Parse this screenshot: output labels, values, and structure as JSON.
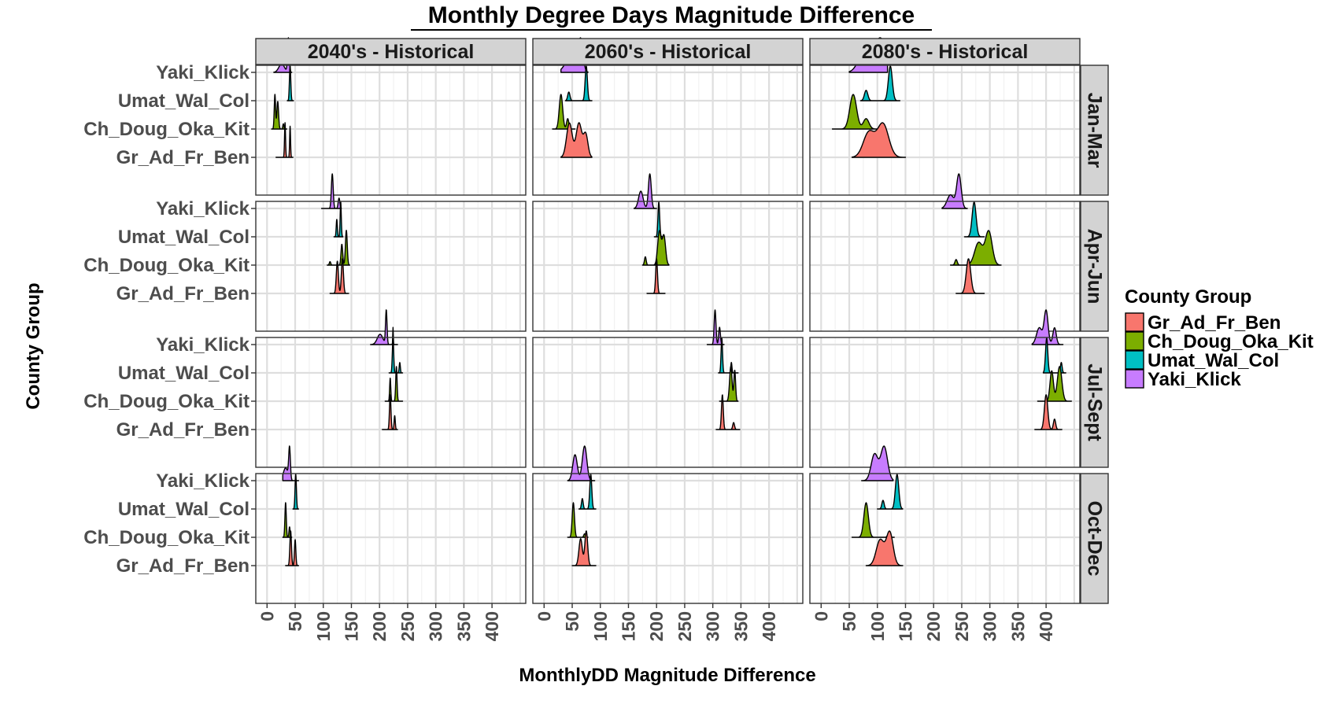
{
  "chart_data": {
    "type": "ridgeline",
    "title": "Monthly Degree Days Magnitude Difference",
    "xlabel": "MonthlyDD Magnitude Difference",
    "ylabel": "County Group",
    "xlim": [
      -20,
      460
    ],
    "xticks": [
      0,
      50,
      100,
      150,
      200,
      250,
      300,
      350,
      400
    ],
    "grid": true,
    "legend": {
      "title": "County Group",
      "position": "right",
      "entries": [
        "Gr_Ad_Fr_Ben",
        "Ch_Doug_Oka_Kit",
        "Umat_Wal_Col",
        "Yaki_Klick"
      ]
    },
    "groups": [
      "Gr_Ad_Fr_Ben",
      "Ch_Doug_Oka_Kit",
      "Umat_Wal_Col",
      "Yaki_Klick"
    ],
    "colors": {
      "Gr_Ad_Fr_Ben": "#F8766D",
      "Ch_Doug_Oka_Kit": "#7CAE00",
      "Umat_Wal_Col": "#00BFC4",
      "Yaki_Klick": "#C77CFF"
    },
    "column_facets": [
      "2040's - Historical",
      "2060's - Historical",
      "2080's - Historical"
    ],
    "row_facets": [
      "Jan-Mar",
      "Apr-Jun",
      "Jul-Sept",
      "Oct-Dec"
    ],
    "distributions": [
      [
        {
          "Gr_Ad_Fr_Ben": {
            "range": [
              16,
              46
            ],
            "peaks": [
              [
                32,
                0.9,
                1.0
              ],
              [
                41,
                0.8,
                0.9
              ]
            ]
          },
          "Ch_Doug_Oka_Kit": {
            "range": [
              8,
              35
            ],
            "peaks": [
              [
                14,
                1.2,
                1.0
              ],
              [
                19,
                1.5,
                0.8
              ],
              [
                29,
                1.0,
                0.15
              ]
            ]
          },
          "Umat_Wal_Col": {
            "range": [
              36,
              47
            ],
            "peaks": [
              [
                41,
                1.2,
                1.0
              ]
            ]
          },
          "Yaki_Klick": {
            "range": [
              12,
              44
            ],
            "peaks": [
              [
                38,
                1.5,
                1.0
              ],
              [
                26,
                5,
                0.25
              ]
            ]
          }
        },
        {
          "Gr_Ad_Fr_Ben": {
            "range": [
              112,
              145
            ],
            "peaks": [
              [
                125,
                1.8,
                0.7
              ],
              [
                134,
                1.8,
                0.75
              ]
            ]
          },
          "Ch_Doug_Oka_Kit": {
            "range": [
              107,
              147
            ],
            "peaks": [
              [
                141,
                1.6,
                1.0
              ],
              [
                133,
                1.5,
                0.6
              ],
              [
                112,
                1.2,
                0.1
              ]
            ]
          },
          "Umat_Wal_Col": {
            "range": [
              119,
              135
            ],
            "peaks": [
              [
                124,
                1.0,
                0.5
              ],
              [
                131,
                1.0,
                1.0
              ]
            ]
          },
          "Yaki_Klick": {
            "range": [
              97,
              132
            ],
            "peaks": [
              [
                116,
                1.6,
                1.0
              ],
              [
                128,
                1.5,
                0.3
              ]
            ]
          }
        },
        {
          "Gr_Ad_Fr_Ben": {
            "range": [
              205,
              232
            ],
            "peaks": [
              [
                219,
                1.3,
                1.0
              ],
              [
                227,
                1.0,
                0.4
              ]
            ]
          },
          "Ch_Doug_Oka_Kit": {
            "range": [
              210,
              241
            ],
            "peaks": [
              [
                219,
                1.0,
                0.6
              ],
              [
                230,
                1.2,
                0.9
              ]
            ]
          },
          "Umat_Wal_Col": {
            "range": [
              217,
              241
            ],
            "peaks": [
              [
                224,
                1.2,
                1.0
              ],
              [
                236,
                1.0,
                0.3
              ]
            ]
          },
          "Yaki_Klick": {
            "range": [
              184,
              232
            ],
            "peaks": [
              [
                212,
                1.3,
                1.0
              ],
              [
                201,
                5,
                0.3
              ],
              [
                224,
                0.5,
                0.5
              ]
            ]
          }
        },
        {
          "Gr_Ad_Fr_Ben": {
            "range": [
              33,
              56
            ],
            "peaks": [
              [
                42,
                1.4,
                0.8
              ],
              [
                50,
                1.2,
                0.6
              ]
            ]
          },
          "Ch_Doug_Oka_Kit": {
            "range": [
              28,
              44
            ],
            "peaks": [
              [
                33,
                1.2,
                1.0
              ],
              [
                40,
                1.0,
                0.3
              ]
            ]
          },
          "Umat_Wal_Col": {
            "range": [
              46,
              56
            ],
            "peaks": [
              [
                51,
                1.2,
                1.0
              ]
            ]
          },
          "Yaki_Klick": {
            "range": [
              28,
              56
            ],
            "peaks": [
              [
                40,
                1.5,
                1.0
              ],
              [
                33,
                4,
                0.4
              ]
            ]
          }
        }
      ],
      [
        {
          "Gr_Ad_Fr_Ben": {
            "range": [
              30,
              85
            ],
            "peaks": [
              [
                45,
                5,
                0.9
              ],
              [
                62,
                5,
                0.9
              ],
              [
                74,
                4,
                0.6
              ]
            ]
          },
          "Ch_Doug_Oka_Kit": {
            "range": [
              15,
              55
            ],
            "peaks": [
              [
                30,
                3,
                1.0
              ],
              [
                42,
                2,
                0.3
              ]
            ]
          },
          "Umat_Wal_Col": {
            "range": [
              38,
              85
            ],
            "peaks": [
              [
                75,
                2,
                1.0
              ],
              [
                44,
                2,
                0.25
              ]
            ]
          },
          "Yaki_Klick": {
            "range": [
              30,
              78
            ],
            "peaks": [
              [
                65,
                4,
                1.0
              ],
              [
                48,
                10,
                0.5
              ]
            ]
          }
        },
        {
          "Gr_Ad_Fr_Ben": {
            "range": [
              183,
              215
            ],
            "peaks": [
              [
                200,
                1.6,
                1.0
              ]
            ]
          },
          "Ch_Doug_Oka_Kit": {
            "range": [
              175,
              222
            ],
            "peaks": [
              [
                205,
                3,
                0.8
              ],
              [
                213,
                3,
                0.7
              ],
              [
                180,
                1.5,
                0.2
              ]
            ]
          },
          "Umat_Wal_Col": {
            "range": [
              196,
              214
            ],
            "peaks": [
              [
                204,
                1.5,
                1.0
              ]
            ]
          },
          "Yaki_Klick": {
            "range": [
              160,
              200
            ],
            "peaks": [
              [
                188,
                2.5,
                1.0
              ],
              [
                172,
                4,
                0.5
              ]
            ]
          }
        },
        {
          "Gr_Ad_Fr_Ben": {
            "range": [
              306,
              348
            ],
            "peaks": [
              [
                317,
                1.6,
                1.0
              ],
              [
                337,
                1.6,
                0.2
              ]
            ]
          },
          "Ch_Doug_Oka_Kit": {
            "range": [
              312,
              345
            ],
            "peaks": [
              [
                332,
                2.2,
                0.9
              ],
              [
                339,
                1.5,
                0.8
              ]
            ]
          },
          "Umat_Wal_Col": {
            "range": [
              310,
              345
            ],
            "peaks": [
              [
                316,
                1.3,
                1.0
              ],
              [
                333,
                1.0,
                0.3
              ]
            ]
          },
          "Yaki_Klick": {
            "range": [
              290,
              320
            ],
            "peaks": [
              [
                304,
                1.6,
                1.0
              ],
              [
                312,
                1.5,
                0.5
              ]
            ]
          }
        },
        {
          "Gr_Ad_Fr_Ben": {
            "range": [
              50,
              92
            ],
            "peaks": [
              [
                65,
                3,
                0.7
              ],
              [
                75,
                2.5,
                0.9
              ]
            ]
          },
          "Ch_Doug_Oka_Kit": {
            "range": [
              42,
              78
            ],
            "peaks": [
              [
                52,
                2,
                1.0
              ],
              [
                72,
                1.5,
                0.1
              ]
            ]
          },
          "Umat_Wal_Col": {
            "range": [
              62,
              92
            ],
            "peaks": [
              [
                83,
                1.8,
                1.0
              ],
              [
                68,
                1.5,
                0.3
              ]
            ]
          },
          "Yaki_Klick": {
            "range": [
              42,
              90
            ],
            "peaks": [
              [
                55,
                4,
                0.6
              ],
              [
                72,
                4,
                0.8
              ]
            ]
          }
        }
      ],
      [
        {
          "Gr_Ad_Fr_Ben": {
            "range": [
              55,
              150
            ],
            "peaks": [
              [
                85,
                10,
                0.6
              ],
              [
                110,
                10,
                0.8
              ]
            ]
          },
          "Ch_Doug_Oka_Kit": {
            "range": [
              20,
              110
            ],
            "peaks": [
              [
                57,
                6,
                1.0
              ],
              [
                80,
                5,
                0.3
              ]
            ]
          },
          "Umat_Wal_Col": {
            "range": [
              70,
              140
            ],
            "peaks": [
              [
                123,
                3.5,
                1.0
              ],
              [
                80,
                3,
                0.3
              ]
            ]
          },
          "Yaki_Klick": {
            "range": [
              50,
              118
            ],
            "peaks": [
              [
                105,
                11,
                1.0
              ],
              [
                75,
                10,
                0.5
              ]
            ]
          }
        },
        {
          "Gr_Ad_Fr_Ben": {
            "range": [
              240,
              290
            ],
            "peaks": [
              [
                262,
                4,
                1.0
              ]
            ]
          },
          "Ch_Doug_Oka_Kit": {
            "range": [
              230,
              320
            ],
            "peaks": [
              [
                280,
                7,
                0.6
              ],
              [
                298,
                6,
                0.9
              ],
              [
                240,
                2,
                0.15
              ]
            ]
          },
          "Umat_Wal_Col": {
            "range": [
              255,
              290
            ],
            "peaks": [
              [
                272,
                3.5,
                1.0
              ]
            ]
          },
          "Yaki_Klick": {
            "range": [
              215,
              260
            ],
            "peaks": [
              [
                245,
                4,
                1.0
              ],
              [
                230,
                6,
                0.4
              ]
            ]
          }
        },
        {
          "Gr_Ad_Fr_Ben": {
            "range": [
              380,
              428
            ],
            "peaks": [
              [
                400,
                3,
                1.0
              ],
              [
                415,
                2,
                0.3
              ]
            ]
          },
          "Ch_Doug_Oka_Kit": {
            "range": [
              385,
              445
            ],
            "peaks": [
              [
                410,
                3,
                0.7
              ],
              [
                424,
                4,
                0.8
              ]
            ]
          },
          "Umat_Wal_Col": {
            "range": [
              395,
              435
            ],
            "peaks": [
              [
                401,
                2,
                1.0
              ],
              [
                427,
                1.5,
                0.3
              ]
            ]
          },
          "Yaki_Klick": {
            "range": [
              375,
              430
            ],
            "peaks": [
              [
                400,
                3.5,
                1.0
              ],
              [
                388,
                5,
                0.5
              ],
              [
                415,
                3,
                0.5
              ]
            ]
          }
        },
        {
          "Gr_Ad_Fr_Ben": {
            "range": [
              80,
              145
            ],
            "peaks": [
              [
                105,
                7,
                0.7
              ],
              [
                122,
                6,
                0.9
              ]
            ]
          },
          "Ch_Doug_Oka_Kit": {
            "range": [
              55,
              130
            ],
            "peaks": [
              [
                80,
                4,
                1.0
              ],
              [
                120,
                2,
                0.1
              ]
            ]
          },
          "Umat_Wal_Col": {
            "range": [
              100,
              145
            ],
            "peaks": [
              [
                135,
                3,
                1.0
              ],
              [
                110,
                2,
                0.25
              ]
            ]
          },
          "Yaki_Klick": {
            "range": [
              72,
              128
            ],
            "peaks": [
              [
                95,
                6,
                0.7
              ],
              [
                112,
                6,
                0.9
              ]
            ]
          }
        }
      ]
    ]
  }
}
